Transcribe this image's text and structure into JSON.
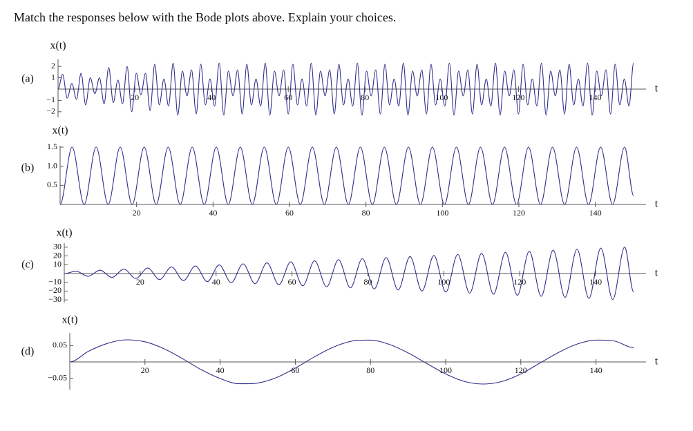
{
  "heading": "Match the responses below with the Bode plots above. Explain your choices.",
  "chart_data": [
    {
      "type": "line",
      "label": "(a)",
      "ylabel": "x(t)",
      "xlabel": "t",
      "color": "#2e2e8c",
      "xlim": [
        0,
        150
      ],
      "ylim": [
        -2.5,
        2.5
      ],
      "xticks": [
        20,
        40,
        60,
        80,
        100,
        120,
        140
      ],
      "yticks": [
        {
          "value": -2,
          "label": "−2"
        },
        {
          "value": -1,
          "label": "−1"
        },
        1,
        2
      ],
      "x": [
        0,
        1.2,
        2.4,
        3.6,
        4.8,
        6,
        7.2,
        8.4,
        9.6,
        10.8,
        12,
        13.2,
        14.4,
        15.6,
        16.8,
        18,
        19.2,
        20.4,
        21.6,
        22.8,
        24,
        25.2,
        26.4,
        27.6,
        28.8,
        30,
        31.2,
        32.4,
        33.6,
        34.8,
        36,
        37.2,
        38.4,
        39.6,
        40.8,
        42,
        43.2,
        44.4,
        45.6,
        46.8,
        48,
        49.2,
        50.4,
        51.6,
        52.8,
        54,
        55.2,
        56.4,
        57.6,
        58.8,
        60,
        61.2,
        62.4,
        63.6,
        64.8,
        66,
        67.2,
        68.4,
        69.6,
        70.8,
        72,
        73.2,
        74.4,
        75.6,
        76.8,
        78,
        79.2,
        80.4,
        81.6,
        82.8,
        84,
        85.2,
        86.4,
        87.6,
        88.8,
        90,
        91.2,
        92.4,
        93.6,
        94.8,
        96,
        97.2,
        98.4,
        99.6,
        100.8,
        102,
        103.2,
        104.4,
        105.6,
        106.8,
        108,
        109.2,
        110.4,
        111.6,
        112.8,
        114,
        115.2,
        116.4,
        117.6,
        118.8,
        120,
        121.2,
        122.4,
        123.6,
        124.8,
        126,
        127.2,
        128.4,
        129.6,
        130.8,
        132,
        133.2,
        134.4,
        135.6,
        136.8,
        138,
        139.2,
        140.4,
        141.6,
        142.8,
        144,
        145.2,
        146.4,
        147.6,
        148.8,
        150
      ],
      "values": [
        0,
        1.3,
        -0.8,
        0.5,
        -0.9,
        1.4,
        -1.4,
        1.0,
        -0.4,
        1.0,
        -1.3,
        1.9,
        -1.2,
        0.8,
        -1.3,
        2.0,
        -2.0,
        1.4,
        -0.5,
        1.4,
        -1.9,
        2.2,
        -1.4,
        0.9,
        -1.5,
        2.3,
        -2.3,
        1.6,
        -0.6,
        1.7,
        -2.2,
        2.2,
        -1.4,
        0.9,
        -1.5,
        2.3,
        -2.3,
        1.6,
        -0.6,
        1.7,
        -2.2,
        2.2,
        -1.4,
        0.9,
        -1.5,
        2.3,
        -2.3,
        1.6,
        -0.6,
        1.7,
        -2.2,
        2.2,
        -1.4,
        0.9,
        -1.5,
        2.3,
        -2.3,
        1.6,
        -0.6,
        1.7,
        -2.2,
        2.2,
        -1.4,
        0.9,
        -1.5,
        2.3,
        -2.3,
        1.6,
        -0.6,
        1.7,
        -2.2,
        2.2,
        -1.4,
        0.9,
        -1.5,
        2.3,
        -2.3,
        1.6,
        -0.6,
        1.7,
        -2.2,
        2.2,
        -1.4,
        0.9,
        -1.5,
        2.3,
        -2.3,
        1.6,
        -0.6,
        1.7,
        -2.2,
        2.2,
        -1.4,
        0.9,
        -1.5,
        2.3,
        -2.3,
        1.6,
        -0.6,
        1.7,
        -2.2,
        2.2,
        -1.4,
        0.9,
        -1.5,
        2.3,
        -2.3,
        1.6,
        -0.6,
        1.7,
        -2.2,
        2.2,
        -1.4,
        0.9,
        -1.5,
        2.3,
        -2.3,
        1.6,
        -0.6,
        1.7,
        -2.2,
        2.2,
        -1.4,
        0.9,
        -1.5,
        2.3
      ]
    },
    {
      "type": "line",
      "label": "(b)",
      "ylabel": "x(t)",
      "xlabel": "t",
      "color": "#2e2e8c",
      "xlim": [
        0,
        150
      ],
      "ylim": [
        0,
        1.5
      ],
      "xticks": [
        20,
        40,
        60,
        80,
        100,
        120,
        140
      ],
      "yticks": [
        0.5,
        {
          "value": 1,
          "label": "1.0"
        },
        1.5
      ],
      "x": [
        0,
        3.14,
        6.28,
        9.42,
        12.57,
        15.71,
        18.85,
        21.99,
        25.13,
        28.27,
        31.42,
        34.56,
        37.7,
        40.84,
        43.98,
        47.12,
        50.27,
        53.41,
        56.55,
        59.69,
        62.83,
        65.97,
        69.12,
        72.26,
        75.4,
        78.54,
        81.68,
        84.82,
        87.96,
        91.11,
        94.25,
        97.39,
        100.53,
        103.67,
        106.81,
        109.96,
        113.1,
        116.24,
        119.38,
        122.52,
        125.66,
        128.81,
        131.95,
        135.09,
        138.23,
        141.37,
        144.51,
        147.65,
        150
      ],
      "values": [
        0,
        1.5,
        0,
        1.5,
        0,
        1.5,
        0,
        1.5,
        0,
        1.5,
        0,
        1.5,
        0,
        1.5,
        0,
        1.5,
        0,
        1.5,
        0,
        1.5,
        0,
        1.5,
        0,
        1.5,
        0,
        1.5,
        0,
        1.5,
        0,
        1.5,
        0,
        1.5,
        0,
        1.5,
        0,
        1.5,
        0,
        1.5,
        0,
        1.5,
        0,
        1.5,
        0,
        1.5,
        0,
        1.5,
        0,
        1.5,
        0.23
      ]
    },
    {
      "type": "line",
      "label": "(c)",
      "ylabel": "x(t)",
      "xlabel": "t",
      "color": "#2e2e8c",
      "xlim": [
        0,
        150
      ],
      "ylim": [
        -33,
        33
      ],
      "xticks": [
        20,
        40,
        60,
        80,
        100,
        120,
        140
      ],
      "yticks": [
        {
          "value": -30,
          "label": "−30"
        },
        {
          "value": -20,
          "label": "−20"
        },
        {
          "value": -10,
          "label": "−10"
        },
        10,
        20,
        30
      ],
      "x": [
        0,
        3.14,
        6.28,
        9.42,
        12.57,
        15.71,
        18.85,
        21.99,
        25.13,
        28.27,
        31.42,
        34.56,
        37.7,
        40.84,
        43.98,
        47.12,
        50.27,
        53.41,
        56.55,
        59.69,
        62.83,
        65.97,
        69.12,
        72.26,
        75.4,
        78.54,
        81.68,
        84.82,
        87.96,
        91.11,
        94.25,
        97.39,
        100.53,
        103.67,
        106.81,
        109.96,
        113.1,
        116.24,
        119.38,
        122.52,
        125.66,
        128.81,
        131.95,
        135.09,
        138.23,
        141.37,
        144.51,
        147.65,
        150
      ],
      "values": [
        0,
        2.6,
        -3.2,
        3.8,
        -4.4,
        5.0,
        -5.6,
        6.2,
        -6.8,
        7.4,
        -8.0,
        8.6,
        -9.2,
        9.8,
        -10.4,
        11.0,
        -11.6,
        12.1,
        -12.7,
        13.3,
        -13.9,
        14.5,
        -15.1,
        15.7,
        -16.3,
        16.9,
        -17.5,
        18.1,
        -18.7,
        19.3,
        -19.9,
        20.5,
        -21.1,
        21.7,
        -22.3,
        22.9,
        -23.5,
        24.1,
        -24.7,
        25.3,
        -25.9,
        26.5,
        -27.1,
        27.7,
        -28.3,
        28.9,
        -29.5,
        30.1,
        -21
      ]
    },
    {
      "type": "line",
      "label": "(d)",
      "ylabel": "x(t)",
      "xlabel": "t",
      "color": "#2e2e8c",
      "xlim": [
        0,
        150
      ],
      "ylim": [
        -0.085,
        0.085
      ],
      "xticks": [
        20,
        40,
        60,
        80,
        100,
        120,
        140
      ],
      "yticks": [
        {
          "value": -0.05,
          "label": "−0.05"
        },
        0.05
      ],
      "x": [
        0,
        5,
        10,
        15,
        20,
        25,
        30,
        35,
        40,
        45,
        50,
        55,
        60,
        65,
        70,
        75,
        80,
        85,
        90,
        95,
        100,
        105,
        110,
        115,
        120,
        125,
        130,
        135,
        140,
        145,
        150
      ],
      "values": [
        0,
        0.033,
        0.057,
        0.068,
        0.062,
        0.041,
        0.01,
        -0.024,
        -0.051,
        -0.067,
        -0.065,
        -0.048,
        -0.019,
        0.015,
        0.045,
        0.064,
        0.067,
        0.054,
        0.028,
        -0.005,
        -0.037,
        -0.06,
        -0.068,
        -0.06,
        -0.037,
        -0.004,
        0.029,
        0.055,
        0.067,
        0.064,
        0.044
      ]
    }
  ]
}
